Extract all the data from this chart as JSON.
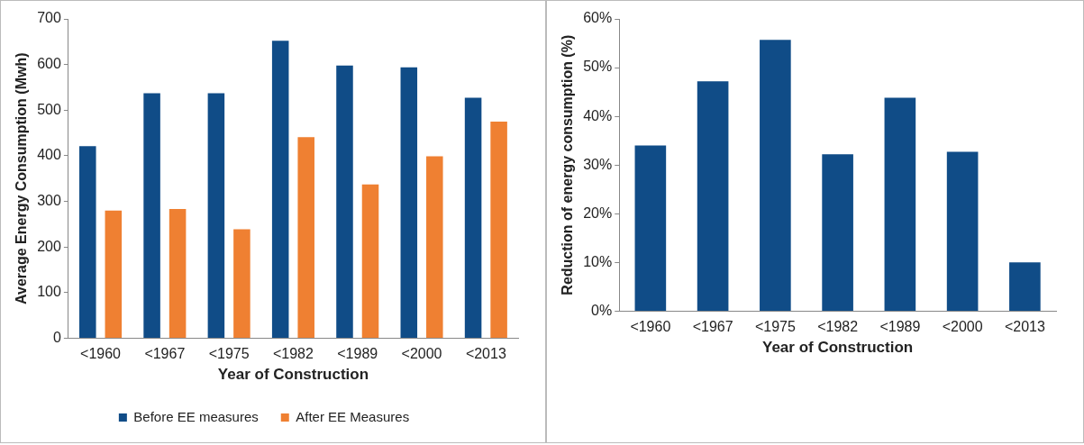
{
  "chart_data": [
    {
      "type": "bar",
      "xlabel": "Year of Construction",
      "ylabel": "Average Energy Consumption (Mwh)",
      "categories": [
        "<1960",
        "<1967",
        "<1975",
        "<1982",
        "<1989",
        "<2000",
        "<2013"
      ],
      "series": [
        {
          "name": "Before EE measures",
          "color": "#104c87",
          "values": [
            421,
            537,
            537,
            652,
            598,
            594,
            527
          ]
        },
        {
          "name": "After EE Measures",
          "color": "#ef8032",
          "values": [
            280,
            283,
            239,
            441,
            337,
            399,
            475
          ]
        }
      ],
      "ylim": [
        0,
        700
      ],
      "yticks": [
        0,
        100,
        200,
        300,
        400,
        500,
        600,
        700
      ],
      "grid": false,
      "legend": "bottom"
    },
    {
      "type": "bar",
      "xlabel": "Year of Construction",
      "ylabel": "Reduction of energy consumption (%)",
      "categories": [
        "<1960",
        "<1967",
        "<1975",
        "<1982",
        "<1989",
        "<2000",
        "<2013"
      ],
      "series": [
        {
          "color": "#104c87",
          "values": [
            34,
            47.2,
            55.7,
            32.2,
            43.8,
            32.7,
            10
          ]
        }
      ],
      "ylim": [
        0,
        60
      ],
      "yticks": [
        {
          "value": 0,
          "label": "0%"
        },
        {
          "value": 10,
          "label": "10%"
        },
        {
          "value": 20,
          "label": "20%"
        },
        {
          "value": 30,
          "label": "30%"
        },
        {
          "value": 40,
          "label": "40%"
        },
        {
          "value": 50,
          "label": "50%"
        },
        {
          "value": 60,
          "label": "60%"
        }
      ],
      "grid": false
    }
  ]
}
